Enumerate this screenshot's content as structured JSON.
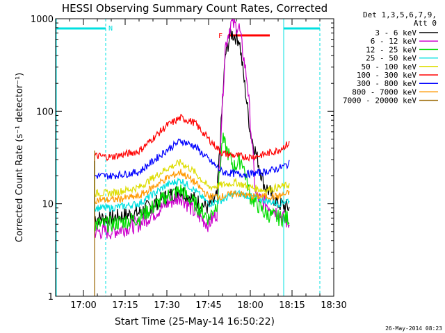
{
  "chart_data": {
    "type": "line",
    "title": "HESSI Observing Summary Count Rates, Corrected",
    "xlabel": "Start Time (25-May-14 16:50:22)",
    "ylabel": "Corrected Count Rate (s⁻¹ detector⁻¹)",
    "yscale": "log",
    "ylim": [
      1,
      1000
    ],
    "xlim_minutes_after_1650": [
      0,
      100
    ],
    "x_ticks": [
      "17:00",
      "17:15",
      "17:30",
      "17:45",
      "18:00",
      "18:15",
      "18:30"
    ],
    "y_ticks": [
      "1",
      "10",
      "100",
      "1000"
    ],
    "legend_header": [
      "Det 1,3,5,6,7,9,",
      "Att 0"
    ],
    "legend_position": "right",
    "series": [
      {
        "name": "3 - 6 keV",
        "color": "#000000",
        "x": [
          "17:04",
          "17:10",
          "17:20",
          "17:30",
          "17:35",
          "17:40",
          "17:45",
          "17:48",
          "17:51",
          "17:53",
          "17:56",
          "18:00",
          "18:05",
          "18:10",
          "18:14"
        ],
        "y": [
          7,
          7,
          8,
          12,
          14,
          11,
          9,
          12,
          400,
          700,
          600,
          60,
          16,
          10,
          9
        ]
      },
      {
        "name": "6 - 12 keV",
        "color": "#cc00cc",
        "x": [
          "17:04",
          "17:10",
          "17:20",
          "17:30",
          "17:35",
          "17:40",
          "17:45",
          "17:48",
          "17:51",
          "17:53",
          "17:56",
          "17:59",
          "18:02",
          "18:10",
          "18:14"
        ],
        "y": [
          5,
          5,
          6,
          10,
          12,
          8,
          6,
          8,
          500,
          900,
          800,
          200,
          12,
          8,
          6
        ]
      },
      {
        "name": "12 - 25 keV",
        "color": "#00dd00",
        "x": [
          "17:04",
          "17:10",
          "17:20",
          "17:30",
          "17:35",
          "17:40",
          "17:45",
          "17:48",
          "17:50",
          "17:54",
          "17:57",
          "18:00",
          "18:05",
          "18:10",
          "18:14"
        ],
        "y": [
          6,
          6,
          7,
          12,
          14,
          10,
          7,
          10,
          50,
          25,
          30,
          12,
          8,
          7,
          7
        ]
      },
      {
        "name": "25 - 50 keV",
        "color": "#00e0e0",
        "x": [
          "17:04",
          "17:10",
          "17:20",
          "17:30",
          "17:35",
          "17:40",
          "17:45",
          "17:50",
          "17:55",
          "18:00",
          "18:05",
          "18:10",
          "18:14"
        ],
        "y": [
          9,
          9,
          10,
          16,
          18,
          14,
          10,
          11,
          13,
          12,
          11,
          10,
          11
        ]
      },
      {
        "name": "50 - 100 keV",
        "color": "#dddd00",
        "x": [
          "17:04",
          "17:10",
          "17:20",
          "17:30",
          "17:35",
          "17:40",
          "17:45",
          "17:50",
          "17:55",
          "18:00",
          "18:05",
          "18:10",
          "18:14"
        ],
        "y": [
          13,
          13,
          15,
          24,
          28,
          22,
          15,
          16,
          17,
          15,
          14,
          15,
          16
        ]
      },
      {
        "name": "100 - 300 keV",
        "color": "#ff0000",
        "x": [
          "17:04",
          "17:10",
          "17:20",
          "17:30",
          "17:35",
          "17:40",
          "17:45",
          "17:50",
          "17:55",
          "18:00",
          "18:05",
          "18:10",
          "18:14"
        ],
        "y": [
          33,
          32,
          37,
          70,
          85,
          75,
          50,
          35,
          33,
          32,
          34,
          38,
          45
        ]
      },
      {
        "name": "300 - 800 keV",
        "color": "#0000ff",
        "x": [
          "17:04",
          "17:10",
          "17:20",
          "17:30",
          "17:35",
          "17:40",
          "17:45",
          "17:50",
          "17:55",
          "18:00",
          "18:05",
          "18:10",
          "18:14"
        ],
        "y": [
          20,
          20,
          22,
          38,
          48,
          42,
          30,
          22,
          21,
          21,
          22,
          24,
          27
        ]
      },
      {
        "name": "800 - 7000 keV",
        "color": "#ff9900",
        "x": [
          "17:04",
          "17:10",
          "17:20",
          "17:30",
          "17:35",
          "17:40",
          "17:45",
          "17:50",
          "17:55",
          "18:00",
          "18:05",
          "18:10",
          "18:14"
        ],
        "y": [
          11,
          11,
          12,
          19,
          22,
          17,
          12,
          12,
          13,
          12,
          12,
          12,
          13
        ]
      },
      {
        "name": "7000 - 20000 keV",
        "color": "#996600",
        "x": [
          "17:04",
          "17:05"
        ],
        "y": [
          1,
          1
        ]
      }
    ],
    "annotations": [
      {
        "label": "N",
        "color": "#00e0e0",
        "kind": "night",
        "intervals": [
          [
            "16:50",
            "17:08"
          ],
          [
            "18:12",
            "18:25"
          ]
        ]
      },
      {
        "label": "F",
        "color": "#ff0000",
        "kind": "flare",
        "intervals": [
          [
            "17:52",
            "18:07"
          ]
        ],
        "level": 660
      }
    ]
  },
  "footer": {
    "timestamp": "26-May-2014 08:23"
  },
  "colors": {
    "axes": "#000000",
    "background": "#ffffff"
  }
}
